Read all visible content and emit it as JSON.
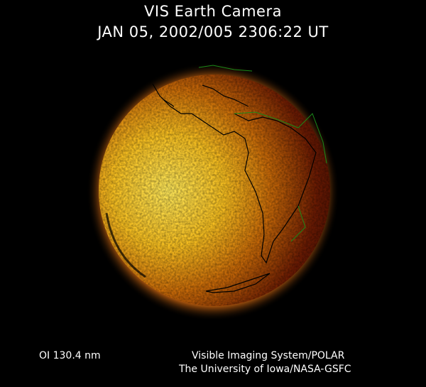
{
  "header": {
    "title": "VIS Earth Camera",
    "timestamp": "JAN 05, 2002/005 2306:22 UT"
  },
  "footer": {
    "wavelength": "OI  130.4 nm",
    "credit_line1": "Visible Imaging System/POLAR",
    "credit_line2": "The University of Iowa/NASA-GSFC"
  },
  "colors": {
    "background": "#000000",
    "bright_limb": "#ffe040",
    "dark_side": "#3a0800",
    "coastline_land": "#000000",
    "coastline_grid": "#1a8a1a"
  }
}
